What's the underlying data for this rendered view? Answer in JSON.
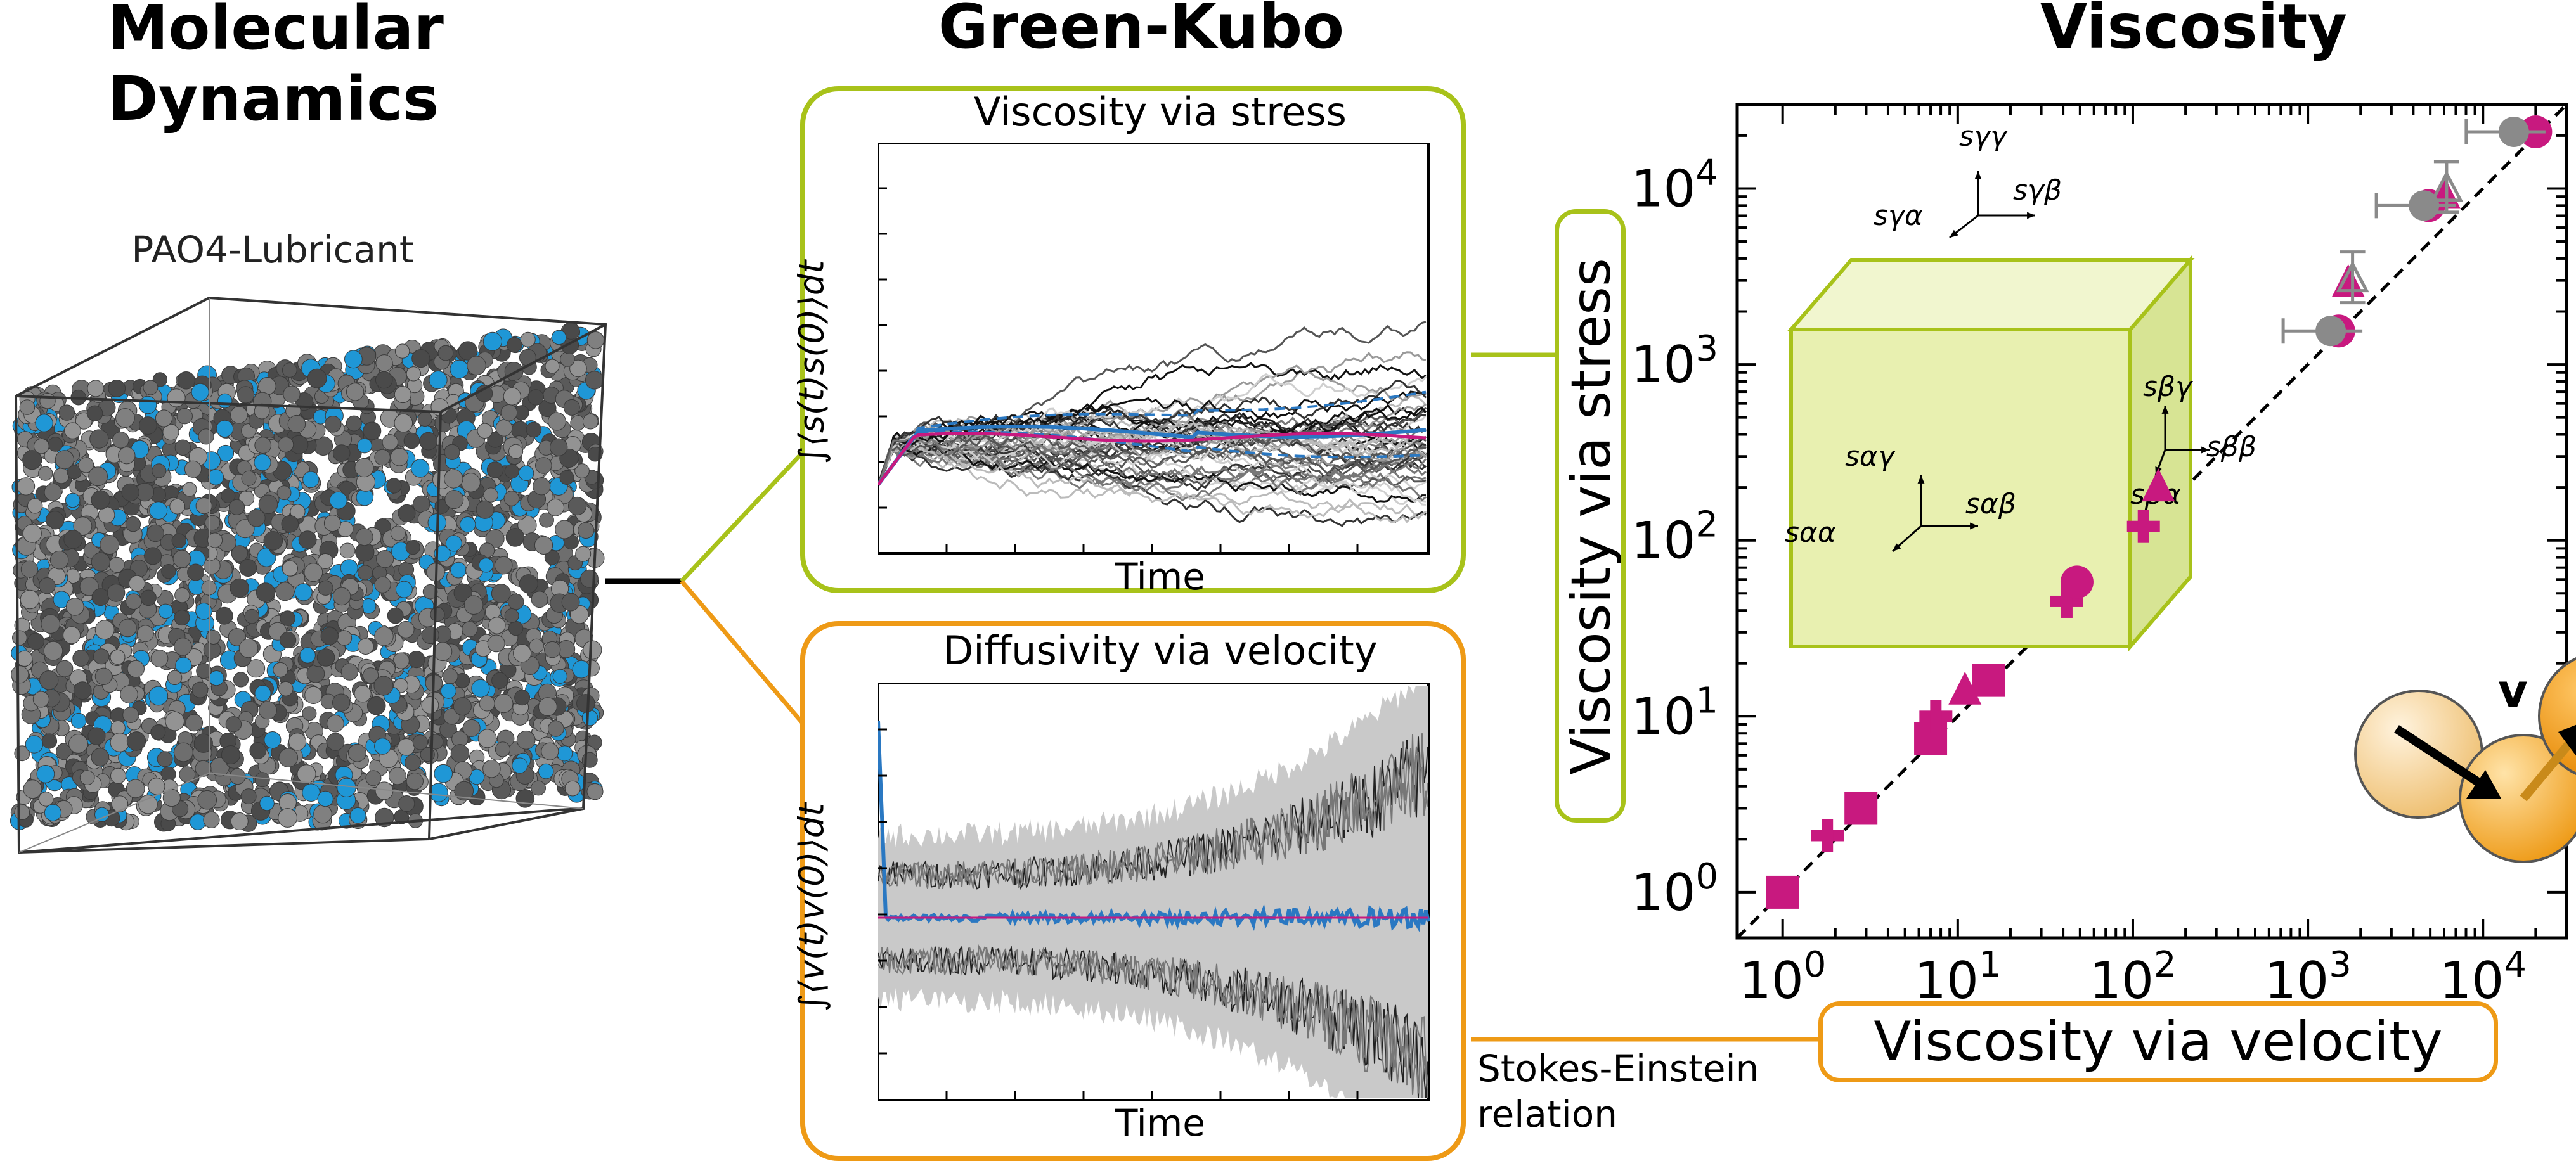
{
  "colors": {
    "stress_green": "#a8c21a",
    "velocity_orange": "#ee9a16",
    "cube_fill": "#e8f0b0",
    "magenta": "#c8197f",
    "grey_marker": "#8a8a8a",
    "atom_grey": "#6b6b6b",
    "atom_blue": "#1f97d6",
    "mean_blue": "#2a78c2"
  },
  "headings": {
    "md": "Molecular Dynamics",
    "gk": "Green-Kubo",
    "visc": "Viscosity"
  },
  "md_panel": {
    "label": "PAO4-Lubricant"
  },
  "stress_panel": {
    "title": "Viscosity via stress",
    "ylabel": "∫⟨s(t)s(0)⟩dt",
    "xlabel": "Time"
  },
  "velocity_panel": {
    "title": "Diffusivity via velocity",
    "ylabel": "∫⟨v(t)v(0)⟩dt",
    "xlabel": "Time"
  },
  "stokes": {
    "line1": "Stokes-Einstein",
    "line2": "relation"
  },
  "cube_labels": {
    "s_gg": "sγγ",
    "s_ga": "sγα",
    "s_gb": "sγβ",
    "s_ag": "sαγ",
    "s_aa": "sαα",
    "s_ab": "sαβ",
    "s_bg": "sβγ",
    "s_bb": "sββ",
    "s_ba": "sβα"
  },
  "ball_label": "v",
  "chart_data": {
    "type": "scatter",
    "xlabel": "Viscosity via velocity",
    "ylabel": "Viscosity via stress",
    "xscale": "log",
    "yscale": "log",
    "xlim": [
      0.55,
      30000
    ],
    "ylim": [
      0.55,
      30000
    ],
    "xticks": [
      "10^0",
      "10^1",
      "10^2",
      "10^3",
      "10^4"
    ],
    "yticks": [
      "10^0",
      "10^1",
      "10^2",
      "10^3",
      "10^4"
    ],
    "reference_line": "y = x (dashed)",
    "series": [
      {
        "marker": "square",
        "color": "magenta",
        "points": [
          [
            1.0,
            1.0
          ],
          [
            2.8,
            3.0
          ],
          [
            7.0,
            7.5
          ],
          [
            15.0,
            16.0
          ]
        ]
      },
      {
        "marker": "plus",
        "color": "magenta",
        "points": [
          [
            1.8,
            2.1
          ],
          [
            7.5,
            10.0
          ],
          [
            42.0,
            45.0
          ],
          [
            115.0,
            120.0
          ]
        ]
      },
      {
        "marker": "triangle",
        "color": "magenta",
        "points": [
          [
            11.0,
            14.0
          ],
          [
            140.0,
            200.0
          ],
          [
            1700.0,
            2900.0
          ],
          [
            6000.0,
            9200.0
          ]
        ]
      },
      {
        "marker": "circle",
        "color": "magenta",
        "points": [
          [
            48.0,
            58.0
          ],
          [
            1500.0,
            1550.0
          ],
          [
            4900.0,
            8000.0
          ],
          [
            20000.0,
            21000.0
          ]
        ]
      },
      {
        "marker": "circle-errorbar",
        "color": "grey",
        "points": [
          [
            1350.0,
            1550.0
          ],
          [
            4600.0,
            8000.0
          ],
          [
            15000.0,
            21000.0
          ]
        ]
      },
      {
        "marker": "triangle-errorbar",
        "color": "grey",
        "points": [
          [
            1800.0,
            3000.0
          ],
          [
            6200.0,
            9800.0
          ]
        ]
      }
    ]
  }
}
